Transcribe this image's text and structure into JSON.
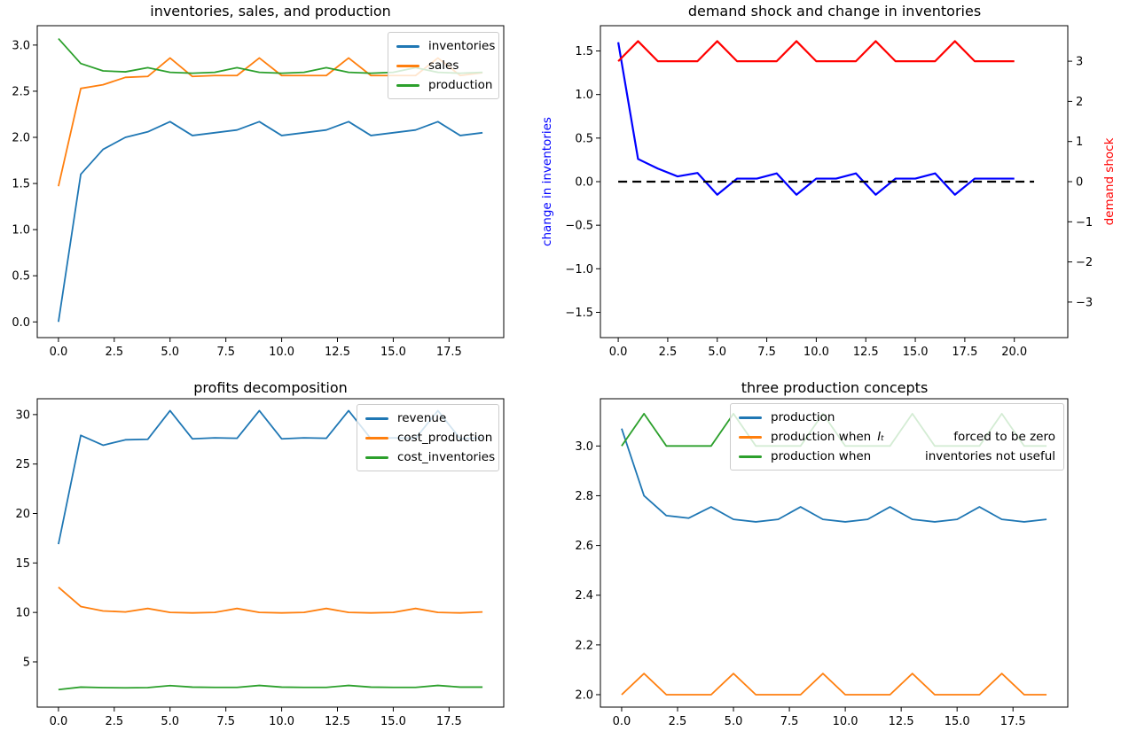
{
  "figure": {
    "background": "#ffffff"
  },
  "chart_data": [
    {
      "type": "line",
      "title": "inventories, sales, and production",
      "xlabel": "",
      "ylabel": "",
      "grid": false,
      "xlim": [
        -0.95,
        19.95
      ],
      "ylim": [
        -0.17,
        3.21
      ],
      "xticks": {
        "values": [
          0,
          2.5,
          5,
          7.5,
          10,
          12.5,
          15,
          17.5
        ],
        "labels": [
          "0.0",
          "2.5",
          "5.0",
          "7.5",
          "10.0",
          "12.5",
          "15.0",
          "17.5"
        ]
      },
      "yticks": {
        "values": [
          0,
          0.5,
          1,
          1.5,
          2,
          2.5,
          3
        ],
        "labels": [
          "0.0",
          "0.5",
          "1.0",
          "1.5",
          "2.0",
          "2.5",
          "3.0"
        ]
      },
      "series": [
        {
          "name": "inventories",
          "color": "#1f77b4",
          "values": [
            0.0,
            1.6,
            1.87,
            2.0,
            2.06,
            2.17,
            2.02,
            2.05,
            2.08,
            2.17,
            2.02,
            2.05,
            2.08,
            2.17,
            2.02,
            2.05,
            2.08,
            2.17,
            2.02,
            2.05
          ]
        },
        {
          "name": "sales",
          "color": "#ff7f0e",
          "values": [
            1.47,
            2.53,
            2.57,
            2.65,
            2.66,
            2.86,
            2.66,
            2.67,
            2.67,
            2.86,
            2.67,
            2.67,
            2.67,
            2.86,
            2.67,
            2.67,
            2.67,
            2.86,
            2.67,
            2.7
          ]
        },
        {
          "name": "production",
          "color": "#2ca02c",
          "values": [
            3.07,
            2.8,
            2.72,
            2.71,
            2.755,
            2.705,
            2.695,
            2.705,
            2.755,
            2.705,
            2.695,
            2.705,
            2.755,
            2.705,
            2.695,
            2.705,
            2.755,
            2.705,
            2.695,
            2.705
          ]
        }
      ],
      "legend": {
        "position": "upper right",
        "entries": [
          {
            "color": "#1f77b4",
            "label": "inventories"
          },
          {
            "color": "#ff7f0e",
            "label": "sales"
          },
          {
            "color": "#2ca02c",
            "label": "production"
          }
        ]
      }
    },
    {
      "type": "line",
      "title": "demand shock and change in inventories",
      "grid": false,
      "ylabel_left": {
        "text": "change in inventories",
        "color": "#0000ff"
      },
      "ylabel_right": {
        "text": "demand shock",
        "color": "#ff0000"
      },
      "xlim": [
        -0.9,
        22.7
      ],
      "ylim": [
        -1.79,
        1.79
      ],
      "ylim_right": [
        -3.885,
        3.885
      ],
      "xticks": {
        "values": [
          0,
          2.5,
          5,
          7.5,
          10,
          12.5,
          15,
          17.5,
          20
        ],
        "labels": [
          "0.0",
          "2.5",
          "5.0",
          "7.5",
          "10.0",
          "12.5",
          "15.0",
          "17.5",
          "20.0"
        ]
      },
      "yticks": {
        "values": [
          -1.5,
          -1.0,
          -0.5,
          0,
          0.5,
          1.0,
          1.5
        ],
        "labels": [
          "−1.5",
          "−1.0",
          "−0.5",
          "0.0",
          "0.5",
          "1.0",
          "1.5"
        ]
      },
      "yticks_right": {
        "values": [
          -3,
          -2,
          -1,
          0,
          1,
          2,
          3
        ],
        "labels": [
          "−3",
          "−2",
          "−1",
          "0",
          "1",
          "2",
          "3"
        ]
      },
      "series": [
        {
          "name": "change in inventories",
          "color": "#0000ff",
          "axis": "left",
          "values": [
            1.6,
            0.26,
            0.15,
            0.06,
            0.1,
            -0.15,
            0.035,
            0.035,
            0.095,
            -0.15,
            0.035,
            0.035,
            0.095,
            -0.15,
            0.035,
            0.035,
            0.095,
            -0.15,
            0.035,
            0.035,
            0.035
          ]
        },
        {
          "name": "demand shock",
          "color": "#ff0000",
          "axis": "right",
          "values": [
            3,
            3.5,
            3,
            3,
            3,
            3.5,
            3,
            3,
            3,
            3.5,
            3,
            3,
            3,
            3.5,
            3,
            3,
            3,
            3.5,
            3,
            3,
            3
          ]
        },
        {
          "name": "zero line",
          "color": "#000000",
          "axis": "left",
          "dashed": true,
          "x_values": [
            0,
            21
          ],
          "values": [
            0,
            0
          ]
        }
      ]
    },
    {
      "type": "line",
      "title": "profits decomposition",
      "grid": false,
      "xlim": [
        -0.95,
        19.95
      ],
      "ylim": [
        0.43,
        31.6
      ],
      "xticks": {
        "values": [
          0,
          2.5,
          5,
          7.5,
          10,
          12.5,
          15,
          17.5
        ],
        "labels": [
          "0.0",
          "2.5",
          "5.0",
          "7.5",
          "10.0",
          "12.5",
          "15.0",
          "17.5"
        ]
      },
      "yticks": {
        "values": [
          5,
          10,
          15,
          20,
          25,
          30
        ],
        "labels": [
          "5",
          "10",
          "15",
          "20",
          "25",
          "30"
        ]
      },
      "series": [
        {
          "name": "revenue",
          "color": "#1f77b4",
          "values": [
            16.9,
            27.9,
            26.9,
            27.45,
            27.5,
            30.4,
            27.55,
            27.65,
            27.6,
            30.4,
            27.55,
            27.65,
            27.6,
            30.4,
            27.55,
            27.65,
            27.6,
            30.4,
            27.55,
            27.65
          ]
        },
        {
          "name": "cost_production",
          "color": "#ff7f0e",
          "values": [
            12.55,
            10.6,
            10.15,
            10.05,
            10.4,
            10.0,
            9.95,
            10.0,
            10.4,
            10.0,
            9.95,
            10.0,
            10.4,
            10.0,
            9.95,
            10.0,
            10.4,
            10.0,
            9.95,
            10.05
          ]
        },
        {
          "name": "cost_inventories",
          "color": "#2ca02c",
          "values": [
            2.2,
            2.45,
            2.4,
            2.38,
            2.4,
            2.6,
            2.45,
            2.42,
            2.42,
            2.62,
            2.45,
            2.42,
            2.42,
            2.62,
            2.45,
            2.42,
            2.42,
            2.62,
            2.45,
            2.45
          ]
        }
      ],
      "legend": {
        "position": "upper right",
        "entries": [
          {
            "color": "#1f77b4",
            "label": "revenue"
          },
          {
            "color": "#ff7f0e",
            "label": "cost_production"
          },
          {
            "color": "#2ca02c",
            "label": "cost_inventories"
          }
        ]
      }
    },
    {
      "type": "line",
      "title": "three production concepts",
      "grid": false,
      "xlim": [
        -0.95,
        19.95
      ],
      "ylim": [
        1.95,
        3.19
      ],
      "xticks": {
        "values": [
          0,
          2.5,
          5,
          7.5,
          10,
          12.5,
          15,
          17.5
        ],
        "labels": [
          "0.0",
          "2.5",
          "5.0",
          "7.5",
          "10.0",
          "12.5",
          "15.0",
          "17.5"
        ]
      },
      "yticks": {
        "values": [
          2.0,
          2.2,
          2.4,
          2.6,
          2.8,
          3.0
        ],
        "labels": [
          "2.0",
          "2.2",
          "2.4",
          "2.6",
          "2.8",
          "3.0"
        ]
      },
      "series": [
        {
          "name": "production",
          "color": "#1f77b4",
          "values": [
            3.07,
            2.8,
            2.72,
            2.71,
            2.755,
            2.705,
            2.695,
            2.705,
            2.755,
            2.705,
            2.695,
            2.705,
            2.755,
            2.705,
            2.695,
            2.705,
            2.755,
            2.705,
            2.695,
            2.705
          ]
        },
        {
          "name": "production when inventories forced to be zero",
          "color": "#ff7f0e",
          "values": [
            2.0,
            2.085,
            2.0,
            2.0,
            2.0,
            2.085,
            2.0,
            2.0,
            2.0,
            2.085,
            2.0,
            2.0,
            2.0,
            2.085,
            2.0,
            2.0,
            2.0,
            2.085,
            2.0,
            2.0
          ]
        },
        {
          "name": "production when inventories not useful",
          "color": "#2ca02c",
          "values": [
            3.0,
            3.13,
            3.0,
            3.0,
            3.0,
            3.13,
            3.0,
            3.0,
            3.0,
            3.13,
            3.0,
            3.0,
            3.0,
            3.13,
            3.0,
            3.0,
            3.0,
            3.13,
            3.0,
            3.0
          ]
        }
      ],
      "legend": {
        "position": "upper center",
        "entries": [
          {
            "color": "#1f77b4",
            "label": "production",
            "math": "",
            "label2": ""
          },
          {
            "color": "#ff7f0e",
            "label": "production when",
            "math": "Iₜ",
            "label2": "forced to be zero"
          },
          {
            "color": "#2ca02c",
            "label": "production when",
            "math": "",
            "label2": "inventories not useful"
          }
        ]
      }
    }
  ]
}
